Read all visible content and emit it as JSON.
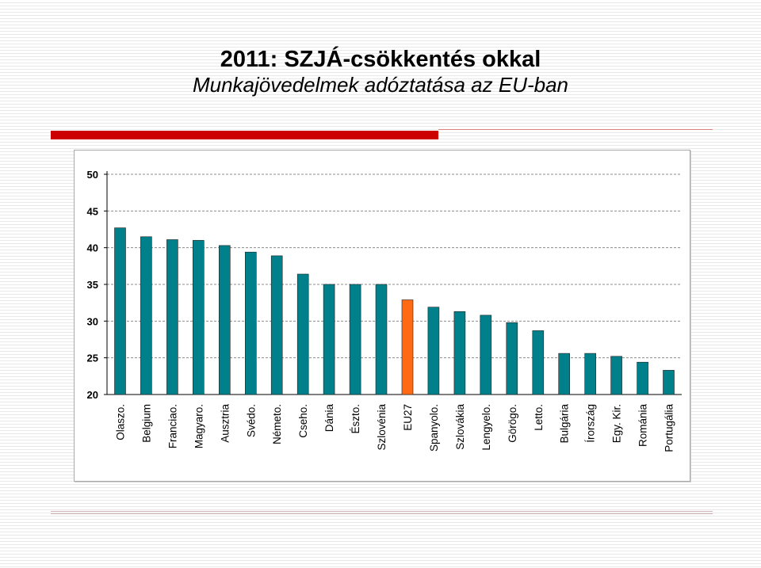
{
  "slide": {
    "title": "2011: SZJÁ-csökkentés okkal",
    "subtitle": "Munkajövedelmek adóztatása az EU-ban",
    "accent_color": "#cc0000",
    "accent_line_color": "#d98080"
  },
  "chart_data": {
    "type": "bar",
    "title": "",
    "xlabel": "",
    "ylabel": "",
    "ylim": [
      20,
      50
    ],
    "yticks": [
      "20",
      "25",
      "30",
      "35",
      "40",
      "45",
      "50"
    ],
    "grid": true,
    "bar_color": "#00808a",
    "highlight_color": "#ff6a13",
    "highlight_category": "EU27",
    "categories": [
      "Olaszo.",
      "Belgium",
      "Franciao.",
      "Magyaro.",
      "Ausztria",
      "Svédo.",
      "Németo.",
      "Cseho.",
      "Dánia",
      "Észto.",
      "Szlovénia",
      "EU27",
      "Spanyolo.",
      "Szlovákia",
      "Lengyelo.",
      "Görögo.",
      "Letto.",
      "Bulgária",
      "Írország",
      "Egy. Kir.",
      "Románia",
      "Portugália"
    ],
    "values": [
      42.7,
      41.5,
      41.1,
      41.0,
      40.3,
      39.4,
      38.9,
      36.4,
      35.0,
      35.0,
      35.0,
      32.9,
      31.9,
      31.3,
      30.8,
      29.8,
      28.7,
      25.6,
      25.6,
      25.2,
      24.4,
      23.3
    ]
  }
}
